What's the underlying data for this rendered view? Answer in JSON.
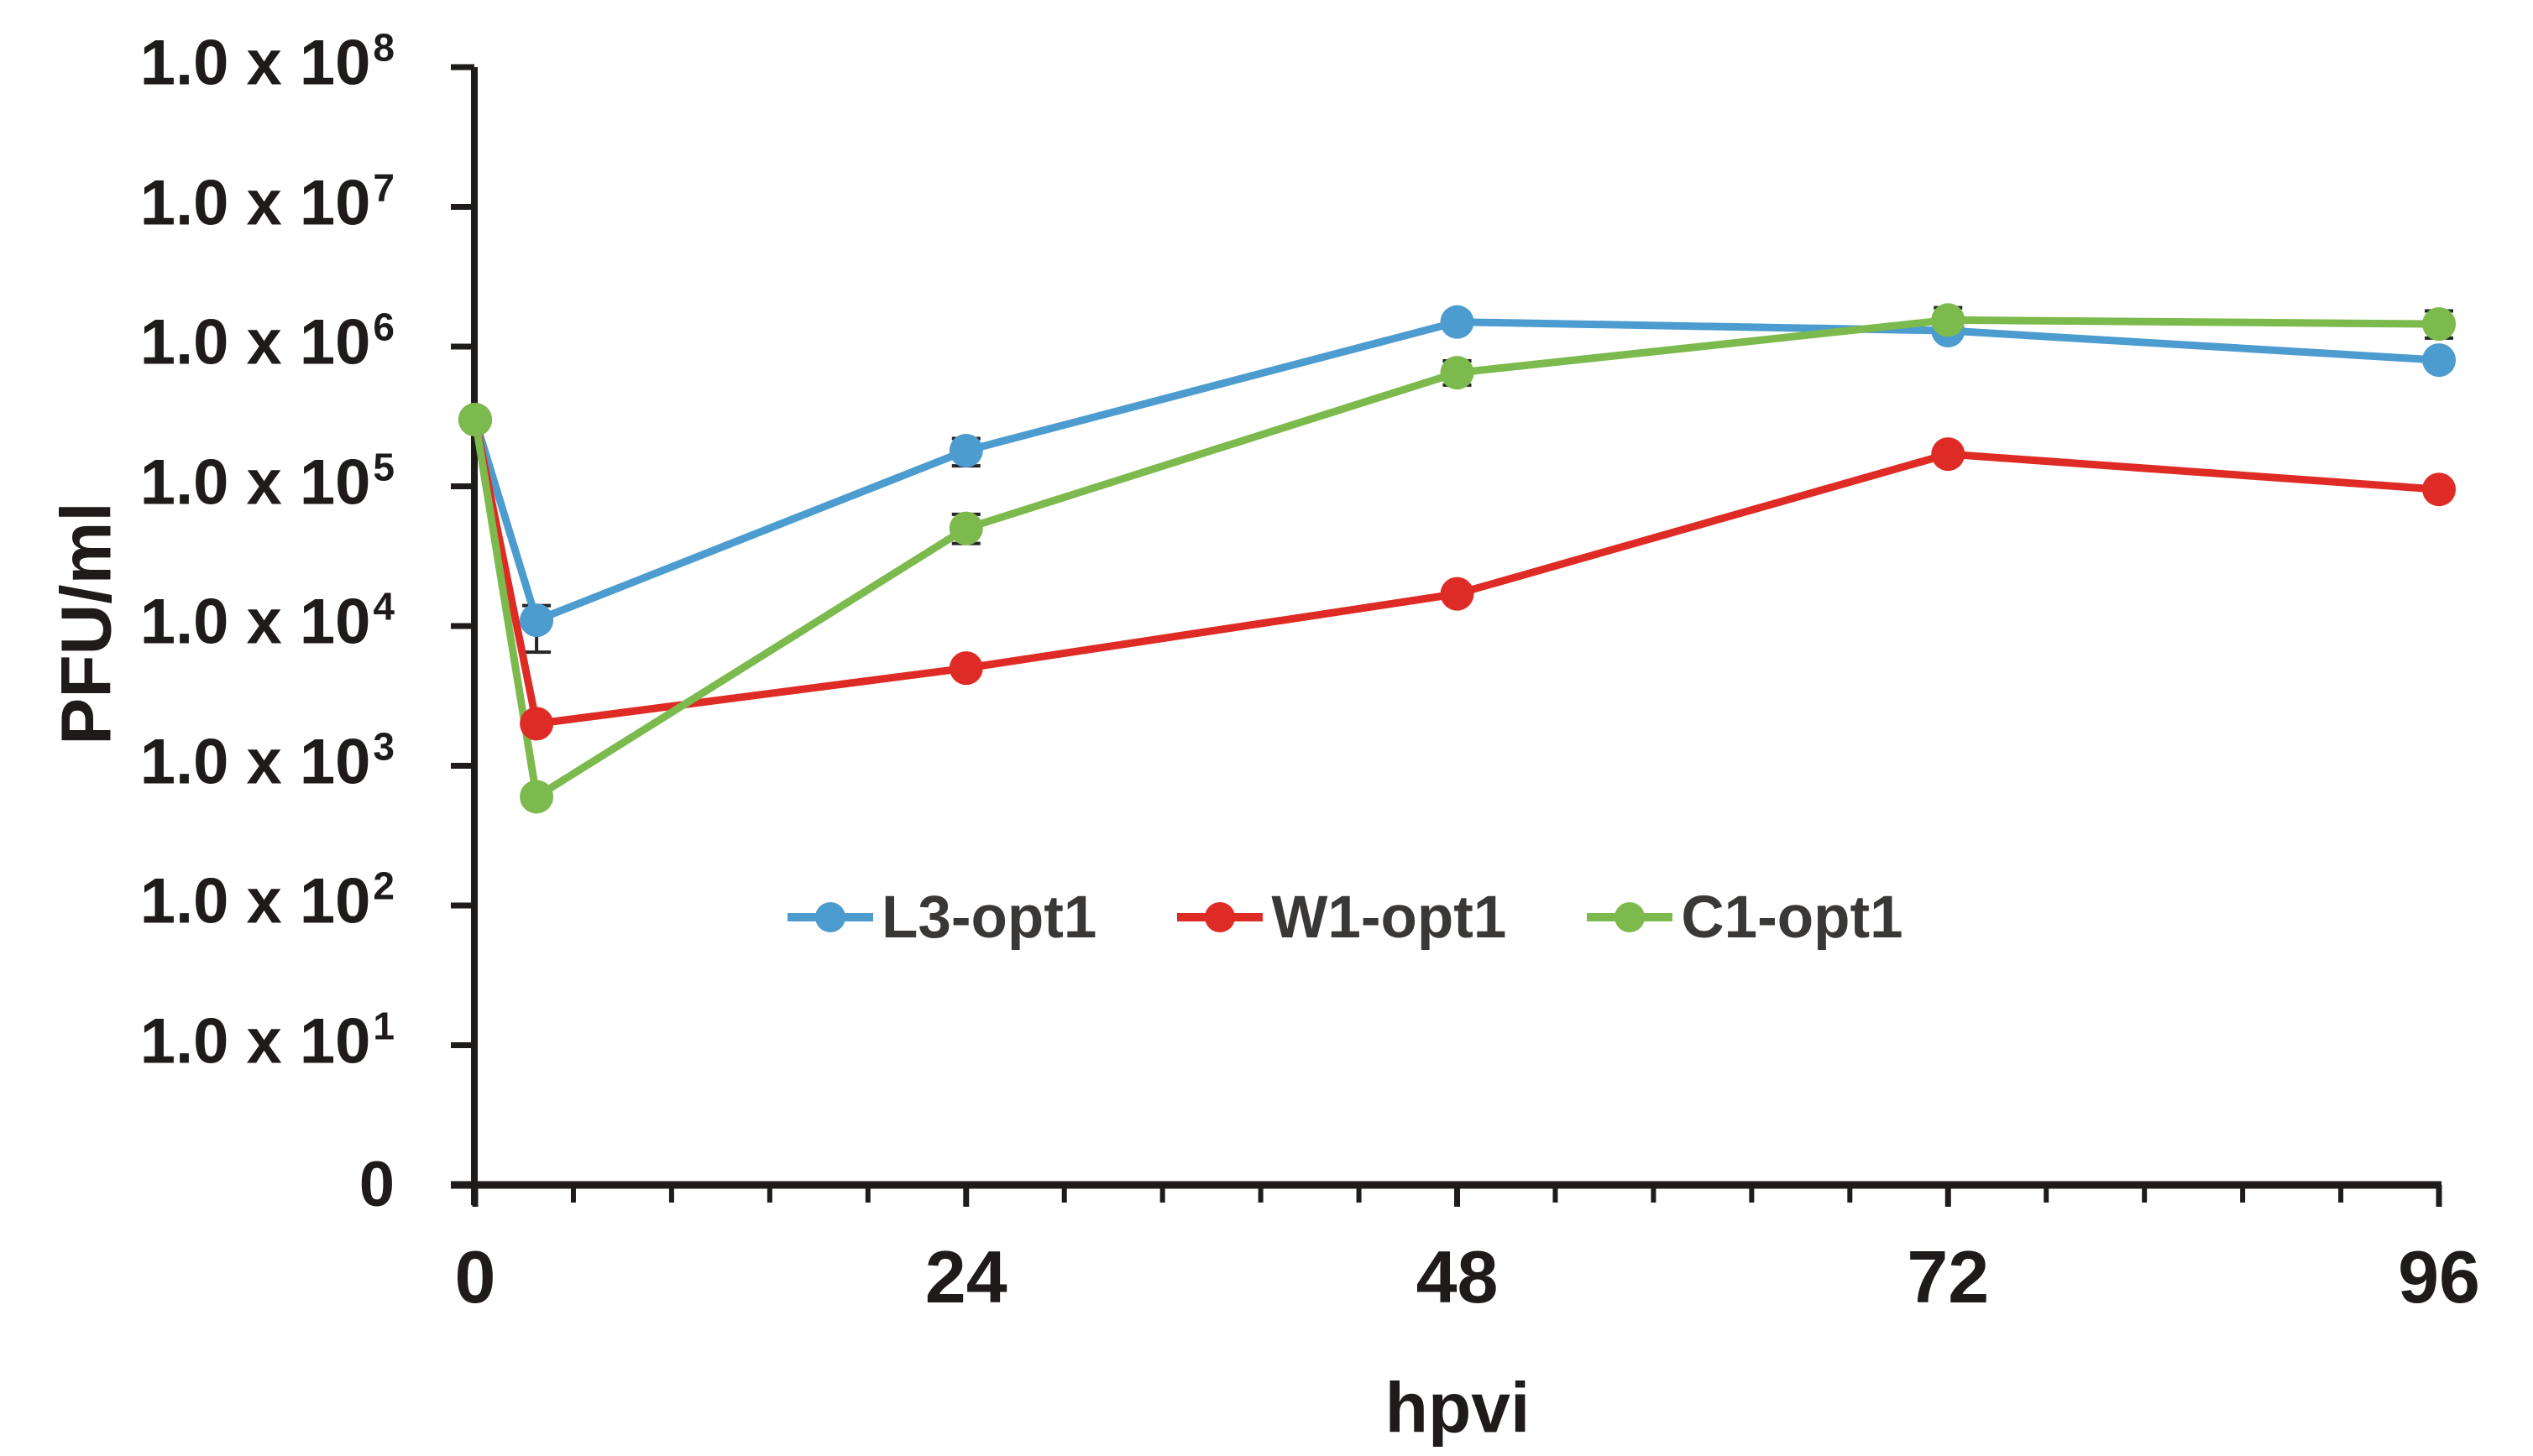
{
  "chart_data": {
    "type": "line",
    "title": "",
    "xlabel": "hpvi",
    "ylabel": "PFU/ml",
    "grid": false,
    "legend_position": "inside-bottom-center",
    "x_range": [
      0,
      96
    ],
    "x_tick_labels": [
      "0",
      "24",
      "48",
      "72",
      "96"
    ],
    "x_ticks": [
      0,
      24,
      48,
      72,
      96
    ],
    "x_minor_step": 4.8,
    "y_scale": "log",
    "y_tick_labels_top_to_bottom": [
      "1.0 x 10⁸",
      "1.0 x 10⁷",
      "1.0 x 10⁶",
      "1.0 x 10⁵",
      "1.0 x 10⁴",
      "1.0 x 10³",
      "1.0 x 10²",
      "1.0 x 10¹",
      "0"
    ],
    "y_tick_exponents": [
      8,
      7,
      6,
      5,
      4,
      3,
      2,
      1
    ],
    "y_tick_mantissa": "1.0 x 10",
    "y_zero_label": "0",
    "ylim_log_exponents": [
      0,
      8
    ],
    "x": [
      0,
      3,
      24,
      48,
      72,
      96
    ],
    "series": [
      {
        "name": "L3-opt1",
        "color": "#4d9ccf",
        "values": [
          300000,
          11000,
          180000,
          1500000,
          1300000,
          800000
        ],
        "error_low": [
          null,
          6500,
          140000,
          null,
          null,
          null
        ],
        "error_high": [
          null,
          14000,
          220000,
          null,
          null,
          null
        ]
      },
      {
        "name": "W1-opt1",
        "color": "#df2b25",
        "values": [
          300000,
          2000,
          5000,
          17000,
          170000,
          95000
        ],
        "error_low": [
          null,
          null,
          null,
          null,
          null,
          null
        ],
        "error_high": [
          null,
          null,
          null,
          null,
          null,
          null
        ]
      },
      {
        "name": "C1-opt1",
        "color": "#7dba4d",
        "values": [
          300000,
          600,
          50000,
          650000,
          1550000,
          1450000
        ],
        "error_low": [
          null,
          null,
          39000,
          530000,
          1250000,
          1150000
        ],
        "error_high": [
          null,
          null,
          63000,
          790000,
          1900000,
          1800000
        ]
      }
    ]
  },
  "colors": {
    "background": "#ffffff",
    "axis": "#1e1b1a",
    "error_bar": "#262626",
    "legend_text": "#3a3837",
    "series_blue": "#4d9ccf",
    "series_red": "#df2b25",
    "series_green": "#7dba4d"
  }
}
